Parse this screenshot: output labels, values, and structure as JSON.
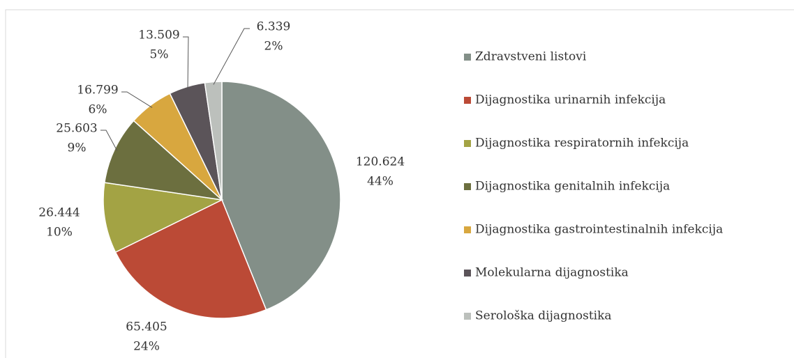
{
  "chart_data": {
    "type": "pie",
    "categories": [
      "Zdravstveni listovi",
      "Dijagnostika urinarnih infekcija",
      "Dijagnostika respiratornih infekcija",
      "Dijagnostika genitalnih infekcija",
      "Dijagnostika gastrointestinalnih infekcija",
      "Molekularna dijagnostika",
      "Serološka dijagnostika"
    ],
    "values": [
      120624,
      65405,
      26444,
      25603,
      16799,
      13509,
      6339
    ],
    "value_labels": [
      "120.624",
      "65.405",
      "26.444",
      "25.603",
      "16.799",
      "13.509",
      "6.339"
    ],
    "percent_labels": [
      "44%",
      "24%",
      "10%",
      "9%",
      "6%",
      "5%",
      "2%"
    ],
    "colors": [
      "#838f88",
      "#bb4a36",
      "#a3a344",
      "#6c6f3f",
      "#d8a73f",
      "#5b5459",
      "#bcc0bc"
    ],
    "legend": "right"
  }
}
